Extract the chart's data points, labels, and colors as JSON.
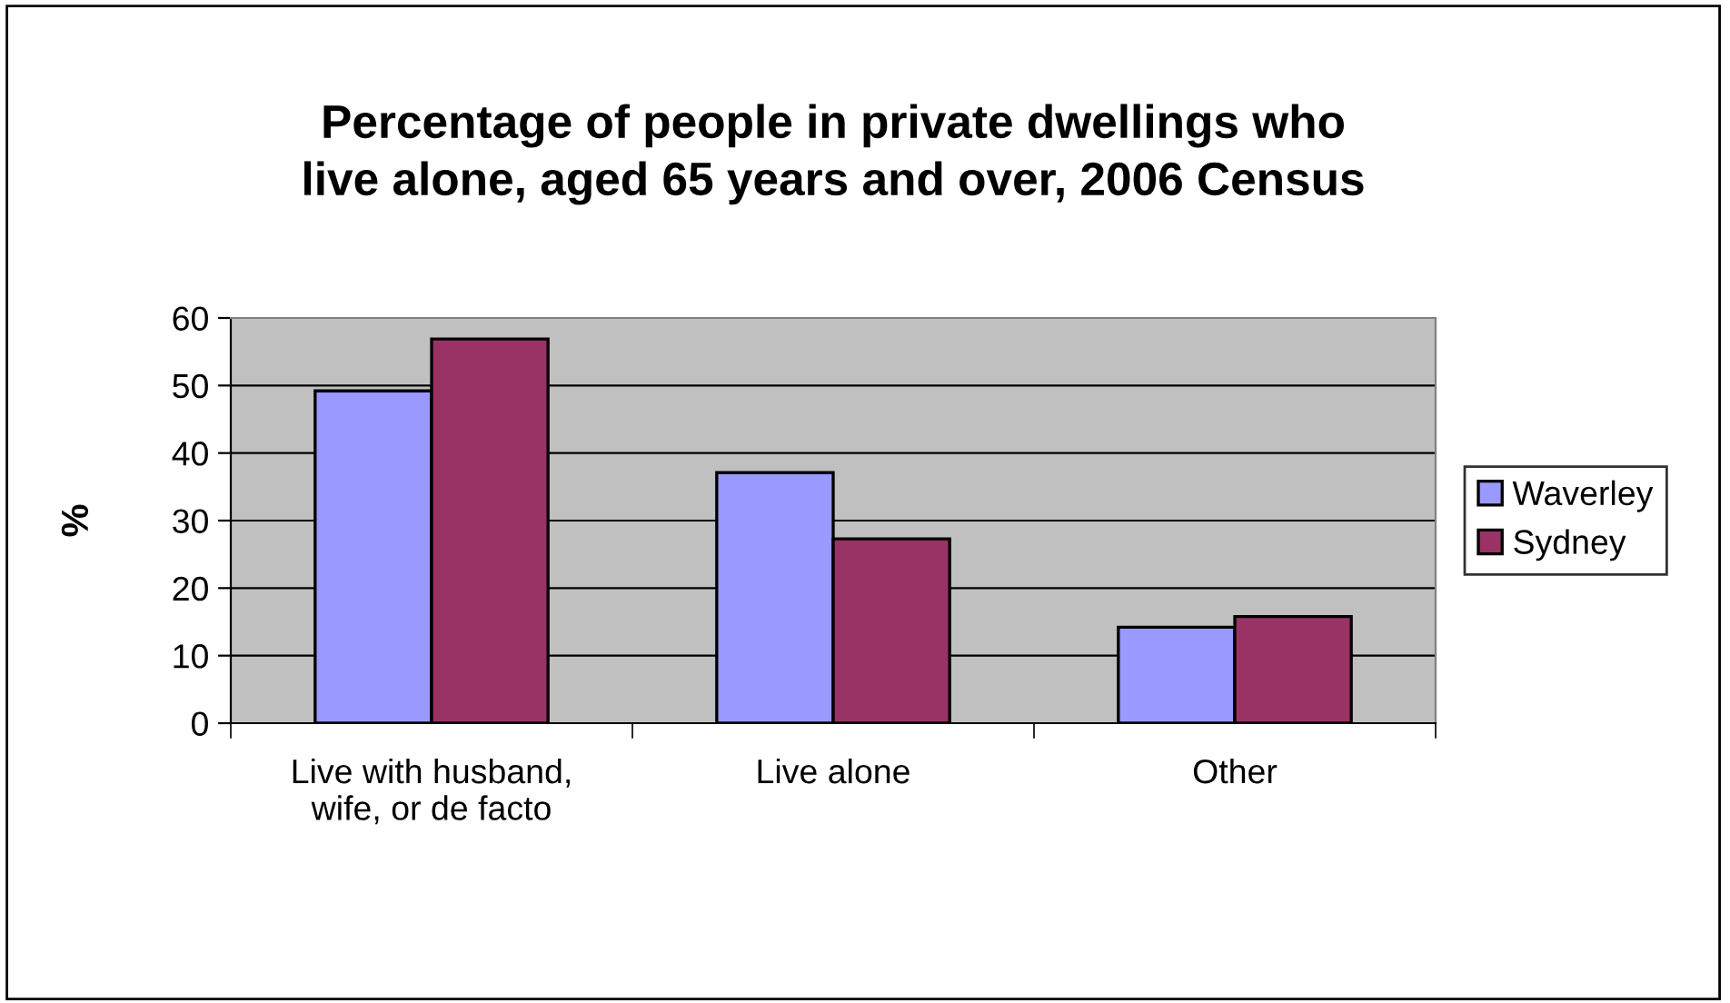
{
  "chart_data": {
    "type": "bar",
    "title": "Percentage of people in private dwellings who\nlive alone, aged 65 years and over, 2006 Census",
    "ylabel": "%",
    "categories": [
      "Live with husband,\nwife, or de facto",
      "Live alone",
      "Other"
    ],
    "series": [
      {
        "name": "Waverley",
        "color": "#9999ff",
        "values": [
          49.2,
          37.1,
          14.2
        ]
      },
      {
        "name": "Sydney",
        "color": "#993366",
        "values": [
          56.9,
          27.3,
          15.8
        ]
      }
    ],
    "ylim": [
      0,
      60
    ],
    "yticks": [
      0,
      10,
      20,
      30,
      40,
      50,
      60
    ],
    "grid": "y",
    "legend": "right"
  }
}
